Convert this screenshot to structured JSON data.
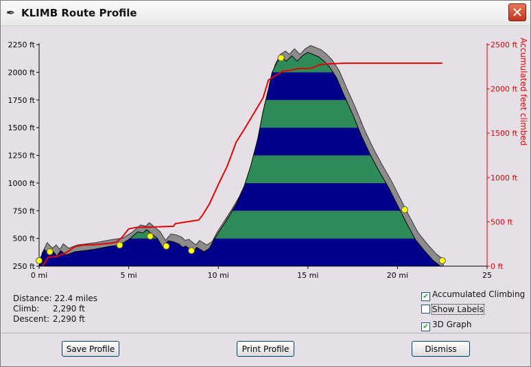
{
  "window": {
    "title": "KLIMB Route Profile",
    "close_glyph": "✕",
    "title_icon": "feather-icon"
  },
  "chart_data": {
    "type": "area",
    "title": "",
    "xlabel": "",
    "ylabel": "",
    "y2label": "Accumulated feet climbed",
    "xlim": [
      0,
      25
    ],
    "ylim": [
      250,
      2250
    ],
    "y2lim": [
      0,
      2500
    ],
    "x_ticks": [
      "0 mi",
      "5 mi",
      "10 mi",
      "15 mi",
      "20 mi",
      "25"
    ],
    "y_ticks": [
      "250 ft",
      "500 ft",
      "750 ft",
      "1000 ft",
      "1250 ft",
      "1500 ft",
      "1750 ft",
      "2000 ft",
      "2250 ft"
    ],
    "y2_ticks": [
      "0 ft",
      "500 ft",
      "1000 ft",
      "1500 ft",
      "2000 ft",
      "2500 ft"
    ],
    "series": [
      {
        "name": "",
        "x": [
          0,
          0.3,
          0.6,
          0.8,
          1.0,
          1.2,
          1.5,
          2.0,
          3.0,
          4.0,
          4.5,
          5.0,
          5.3,
          5.5,
          5.8,
          6.0,
          6.3,
          6.6,
          6.9,
          7.2,
          7.5,
          7.8,
          8.0,
          8.2,
          8.6,
          8.8,
          9.2,
          9.5,
          9.8,
          10.2,
          10.6,
          11.0,
          11.4,
          11.8,
          12.2,
          12.5,
          12.8,
          13.0,
          13.3,
          13.6,
          13.8,
          14.1,
          14.4,
          14.7,
          15.0,
          15.3,
          15.6,
          15.9,
          16.2,
          16.6,
          17.0,
          17.5,
          18.0,
          18.5,
          19.0,
          19.5,
          20.0,
          20.5,
          21.0,
          21.5,
          22.0,
          22.4
        ],
        "y": [
          300,
          400,
          350,
          380,
          340,
          390,
          350,
          380,
          400,
          430,
          440,
          490,
          530,
          560,
          550,
          580,
          540,
          500,
          420,
          480,
          470,
          450,
          420,
          430,
          380,
          420,
          380,
          410,
          500,
          600,
          700,
          810,
          950,
          1150,
          1400,
          1650,
          1850,
          2000,
          2100,
          2130,
          2100,
          2150,
          2100,
          2150,
          2180,
          2160,
          2140,
          2100,
          2050,
          1950,
          1800,
          1620,
          1420,
          1250,
          1100,
          960,
          800,
          640,
          490,
          390,
          300,
          250
        ]
      },
      {
        "name": "Accumulated feet climbed",
        "x": [
          0.2,
          0.5,
          1.0,
          1.5,
          2.0,
          2.5,
          3.0,
          4.0,
          4.3,
          4.6,
          5.0,
          5.5,
          6.0,
          7.5,
          7.6,
          8.9,
          9.1,
          9.5,
          10.0,
          10.5,
          11.0,
          11.5,
          12.0,
          12.5,
          12.8,
          13.2,
          13.6,
          14.0,
          14.5,
          15.0,
          15.3,
          15.6,
          16.0,
          17.0,
          18.0,
          20.0,
          22.0,
          22.5
        ],
        "y": [
          0,
          100,
          110,
          150,
          220,
          240,
          240,
          260,
          270,
          320,
          420,
          440,
          440,
          450,
          480,
          520,
          570,
          700,
          920,
          1130,
          1400,
          1560,
          1730,
          1900,
          2100,
          2150,
          2200,
          2210,
          2230,
          2230,
          2240,
          2270,
          2280,
          2290,
          2290,
          2290,
          2290,
          2290
        ]
      }
    ],
    "markers": [
      {
        "x": 0.0,
        "y": 300
      },
      {
        "x": 0.6,
        "y": 380
      },
      {
        "x": 4.5,
        "y": 440
      },
      {
        "x": 6.2,
        "y": 520
      },
      {
        "x": 7.1,
        "y": 430
      },
      {
        "x": 8.5,
        "y": 390
      },
      {
        "x": 13.5,
        "y": 2130
      },
      {
        "x": 20.4,
        "y": 760
      },
      {
        "x": 22.5,
        "y": 300
      }
    ],
    "band_colors": [
      "#00008c",
      "#2e8b57"
    ],
    "accum_color": "#e00000"
  },
  "stats": {
    "distance_label": "Distance:",
    "distance_value": "22.4 miles",
    "climb_label": "Climb:",
    "climb_value": "2,290 ft",
    "descent_label": "Descent:",
    "descent_value": "2,290 ft"
  },
  "options": {
    "accum_label": "Accumulated Climbing",
    "accum_checked": true,
    "labels_label": "Show Labels",
    "labels_checked": false,
    "graph3d_label": "3D Graph",
    "graph3d_checked": true,
    "check_glyph": "✔"
  },
  "buttons": {
    "save": "Save Profile",
    "print": "Print Profile",
    "dismiss": "Dismiss"
  }
}
